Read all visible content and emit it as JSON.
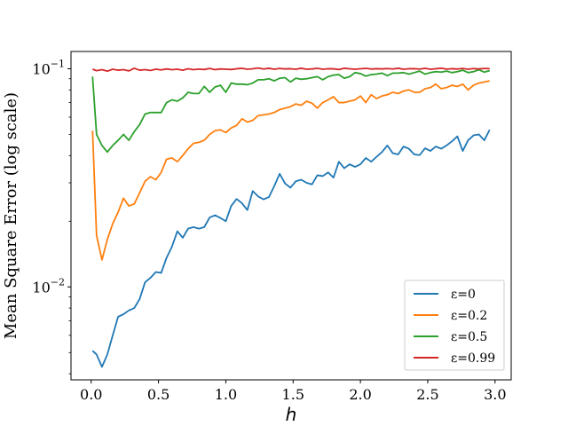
{
  "chart_data": {
    "type": "line",
    "title": "",
    "xlabel": "h",
    "ylabel": "Mean Square Error (log scale)",
    "yscale": "log",
    "xlim": [
      -0.15,
      3.12
    ],
    "ylim": [
      0.00375,
      0.12
    ],
    "xticks": [
      0.0,
      0.5,
      1.0,
      1.5,
      2.0,
      2.5,
      3.0
    ],
    "xtick_labels": [
      "0.0",
      "0.5",
      "1.0",
      "1.5",
      "2.0",
      "2.5",
      "3.0"
    ],
    "yticks": [
      0.01,
      0.1
    ],
    "ytick_base": "10",
    "ytick_exponents": [
      "−2",
      "−1"
    ],
    "grid": false,
    "legend_position": "lower right",
    "colors": [
      "#1f77b4",
      "#ff7f0e",
      "#2ca02c",
      "#d62728"
    ],
    "x": [
      0.01,
      0.04,
      0.08,
      0.12,
      0.16,
      0.2,
      0.24,
      0.28,
      0.32,
      0.36,
      0.4,
      0.44,
      0.48,
      0.52,
      0.56,
      0.6,
      0.64,
      0.68,
      0.72,
      0.76,
      0.8,
      0.84,
      0.88,
      0.92,
      0.96,
      1.0,
      1.04,
      1.08,
      1.12,
      1.16,
      1.2,
      1.24,
      1.28,
      1.32,
      1.36,
      1.4,
      1.44,
      1.48,
      1.52,
      1.56,
      1.6,
      1.64,
      1.68,
      1.72,
      1.76,
      1.8,
      1.84,
      1.88,
      1.92,
      1.96,
      2.0,
      2.04,
      2.08,
      2.12,
      2.16,
      2.2,
      2.24,
      2.28,
      2.32,
      2.36,
      2.4,
      2.44,
      2.48,
      2.52,
      2.56,
      2.6,
      2.64,
      2.68,
      2.72,
      2.76,
      2.8,
      2.84,
      2.88,
      2.92,
      2.96
    ],
    "series": [
      {
        "name": "ε=0",
        "values": [
          0.0051,
          0.0049,
          0.0043,
          0.0049,
          0.006,
          0.0073,
          0.0075,
          0.0078,
          0.008,
          0.0088,
          0.0105,
          0.011,
          0.0117,
          0.0116,
          0.0136,
          0.0153,
          0.018,
          0.0168,
          0.0185,
          0.0188,
          0.0185,
          0.0188,
          0.0208,
          0.0213,
          0.0207,
          0.02,
          0.0235,
          0.0253,
          0.0242,
          0.0225,
          0.0275,
          0.026,
          0.0252,
          0.0258,
          0.029,
          0.033,
          0.0298,
          0.0285,
          0.0305,
          0.031,
          0.03,
          0.0295,
          0.0325,
          0.0322,
          0.0335,
          0.0317,
          0.0375,
          0.035,
          0.0365,
          0.0355,
          0.0365,
          0.039,
          0.0375,
          0.0395,
          0.0415,
          0.0445,
          0.041,
          0.0405,
          0.044,
          0.043,
          0.0405,
          0.0402,
          0.0432,
          0.042,
          0.044,
          0.043,
          0.0445,
          0.0465,
          0.049,
          0.042,
          0.047,
          0.0495,
          0.05,
          0.047,
          0.0525
        ]
      },
      {
        "name": "ε=0.2",
        "values": [
          0.052,
          0.0172,
          0.0133,
          0.0165,
          0.0195,
          0.022,
          0.0255,
          0.0235,
          0.024,
          0.027,
          0.0305,
          0.032,
          0.031,
          0.0335,
          0.0385,
          0.039,
          0.0375,
          0.04,
          0.043,
          0.0455,
          0.046,
          0.047,
          0.05,
          0.052,
          0.0525,
          0.051,
          0.0535,
          0.055,
          0.059,
          0.057,
          0.058,
          0.061,
          0.0615,
          0.062,
          0.063,
          0.065,
          0.066,
          0.067,
          0.069,
          0.068,
          0.071,
          0.0695,
          0.066,
          0.07,
          0.072,
          0.0745,
          0.07,
          0.07,
          0.071,
          0.072,
          0.075,
          0.07,
          0.076,
          0.073,
          0.075,
          0.076,
          0.078,
          0.077,
          0.079,
          0.08,
          0.078,
          0.078,
          0.081,
          0.082,
          0.085,
          0.081,
          0.082,
          0.084,
          0.083,
          0.085,
          0.08,
          0.084,
          0.086,
          0.087,
          0.088
        ]
      },
      {
        "name": "ε=0.5",
        "values": [
          0.092,
          0.05,
          0.0445,
          0.0415,
          0.0445,
          0.047,
          0.05,
          0.047,
          0.0515,
          0.0555,
          0.062,
          0.063,
          0.063,
          0.063,
          0.07,
          0.072,
          0.071,
          0.0735,
          0.078,
          0.077,
          0.077,
          0.083,
          0.078,
          0.0825,
          0.084,
          0.078,
          0.086,
          0.085,
          0.085,
          0.0845,
          0.086,
          0.089,
          0.089,
          0.09,
          0.088,
          0.0905,
          0.091,
          0.087,
          0.0905,
          0.0895,
          0.09,
          0.091,
          0.092,
          0.089,
          0.092,
          0.0935,
          0.094,
          0.0905,
          0.092,
          0.096,
          0.095,
          0.0925,
          0.094,
          0.0945,
          0.0955,
          0.093,
          0.0955,
          0.0955,
          0.096,
          0.0945,
          0.096,
          0.0975,
          0.0945,
          0.096,
          0.097,
          0.0965,
          0.0975,
          0.096,
          0.097,
          0.0985,
          0.096,
          0.097,
          0.099,
          0.0965,
          0.098
        ]
      },
      {
        "name": "ε=0.99",
        "values": [
          0.0995,
          0.098,
          0.099,
          0.0975,
          0.0995,
          0.0985,
          0.099,
          0.0978,
          0.1005,
          0.0985,
          0.099,
          0.0982,
          0.0995,
          0.0988,
          0.0998,
          0.099,
          0.0995,
          0.0985,
          0.1,
          0.099,
          0.0996,
          0.0992,
          0.1003,
          0.099,
          0.0998,
          0.0995,
          0.0992,
          0.1,
          0.1004,
          0.0995,
          0.1,
          0.1008,
          0.0997,
          0.1005,
          0.0995,
          0.1003,
          0.0998,
          0.1,
          0.0995,
          0.1005,
          0.0995,
          0.0998,
          0.1004,
          0.0995,
          0.1,
          0.0999,
          0.0992,
          0.1005,
          0.1,
          0.0995,
          0.1,
          0.1004,
          0.0997,
          0.1,
          0.0998,
          0.1002,
          0.0997,
          0.1005,
          0.0995,
          0.1,
          0.1,
          0.0996,
          0.1004,
          0.0995,
          0.1,
          0.1006,
          0.0996,
          0.1,
          0.0997,
          0.1003,
          0.0995,
          0.1002,
          0.0998,
          0.1003,
          0.1
        ]
      }
    ]
  }
}
